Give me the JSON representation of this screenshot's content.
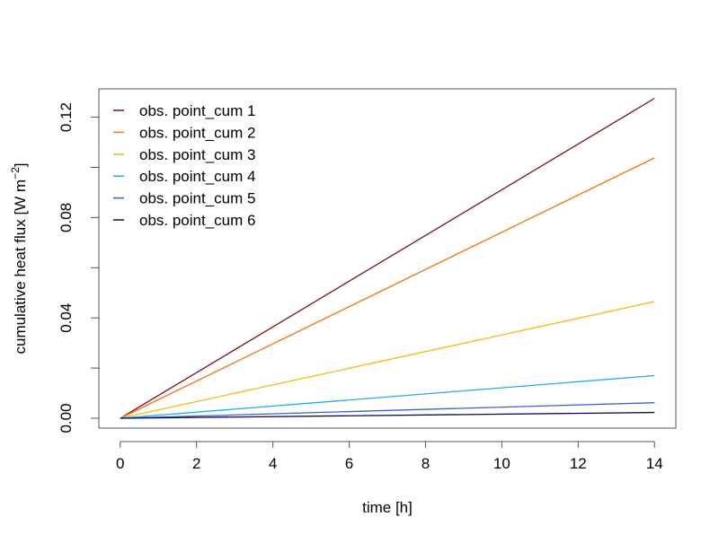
{
  "chart_data": {
    "type": "line",
    "title": "",
    "xlabel": "time [h]",
    "ylabel_main": "cumulative heat flux [W m",
    "ylabel_sup": "−2",
    "ylabel_close": "]",
    "xlim": [
      -0.56,
      14.56
    ],
    "ylim": [
      -0.00393,
      0.1313
    ],
    "x_ticks": [
      0,
      2,
      4,
      6,
      8,
      10,
      12,
      14
    ],
    "x_tick_labels": [
      "0",
      "2",
      "4",
      "6",
      "8",
      "10",
      "12",
      "14"
    ],
    "y_ticks": [
      0,
      0.02,
      0.04,
      0.06,
      0.08,
      0.1,
      0.12
    ],
    "y_tick_labels": [
      "0.00",
      "",
      "0.04",
      "",
      "0.08",
      "",
      "0.12"
    ],
    "grid": false,
    "legend_position": "top-left",
    "x": [
      0,
      14
    ],
    "series": [
      {
        "name": "obs. point_cum 1",
        "color": "#7a1015",
        "values": [
          0,
          0.1275
        ]
      },
      {
        "name": "obs. point_cum 2",
        "color": "#f5730f",
        "values": [
          0,
          0.1038
        ]
      },
      {
        "name": "obs. point_cum 3",
        "color": "#f7b80f",
        "values": [
          0,
          0.0465
        ]
      },
      {
        "name": "obs. point_cum 4",
        "color": "#20aee6",
        "values": [
          0,
          0.017
        ]
      },
      {
        "name": "obs. point_cum 5",
        "color": "#3a63cc",
        "values": [
          0,
          0.0062
        ]
      },
      {
        "name": "obs. point_cum 6",
        "color": "#0c0c55",
        "values": [
          0,
          0.0023
        ]
      }
    ]
  }
}
